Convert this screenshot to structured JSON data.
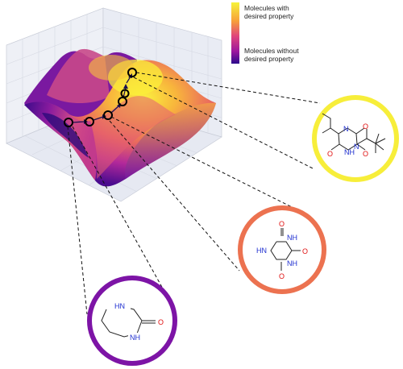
{
  "legend": {
    "top_label_line1": "Molecules with",
    "top_label_line2": "desired property",
    "bottom_label_line1": "Molecules without",
    "bottom_label_line2": "desired property",
    "gradient_colors": [
      "#f6f33a",
      "#f7a13a",
      "#e0457b",
      "#9c179e",
      "#2c0a8c"
    ]
  },
  "molecules": {
    "top_ring_color": "#f7ee3a",
    "middle_ring_color": "#ec7250",
    "bottom_ring_color": "#7d14a6",
    "atom_n": "N",
    "atom_nh": "NH",
    "atom_hn": "HN",
    "atom_o": "O",
    "n_color": "#1f2fd0",
    "o_color": "#e01010"
  },
  "path": {
    "node_count": 6
  }
}
